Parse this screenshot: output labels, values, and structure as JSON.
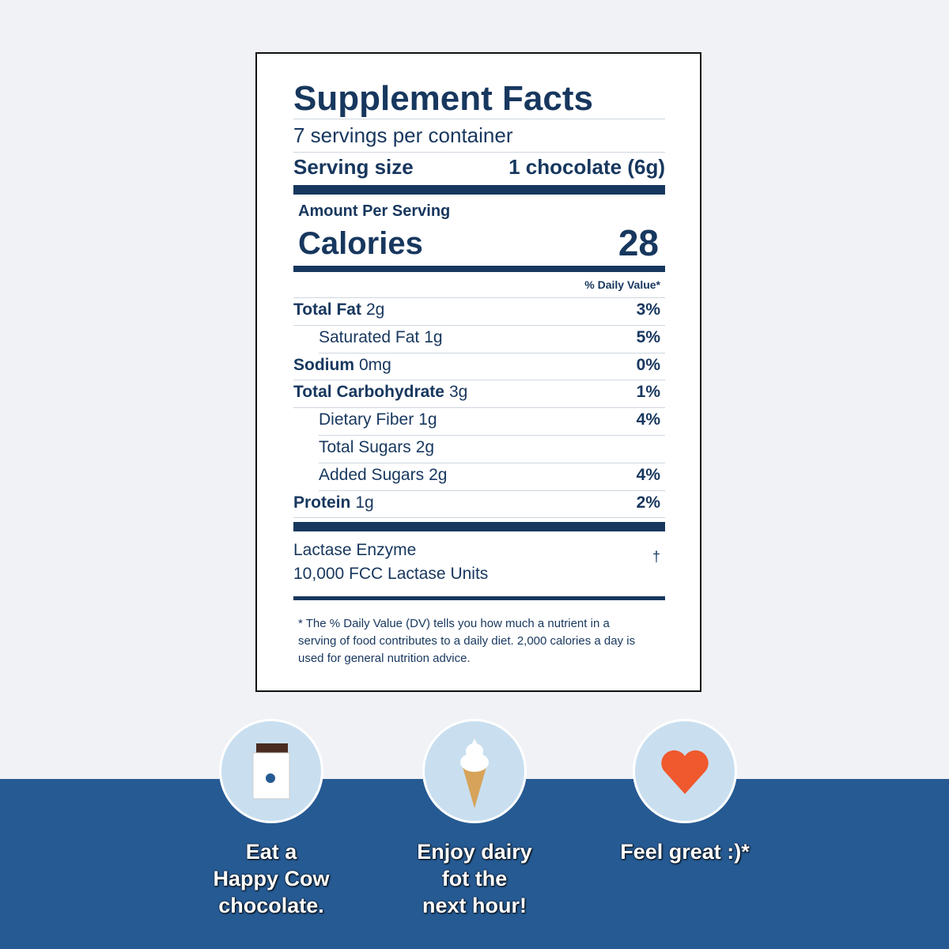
{
  "label": {
    "title": "Supplement Facts",
    "servings": "7 servings per container",
    "serving_size": {
      "label": "Serving size",
      "value": "1 chocolate (6g)"
    },
    "amount_per_serving": "Amount Per Serving",
    "calories": {
      "label": "Calories",
      "value": "28"
    },
    "dv_header": "% Daily Value*",
    "rows": [
      {
        "name": "Total Fat",
        "amount": "2g",
        "dv": "3%",
        "subrows": [
          {
            "name": "Saturated Fat",
            "amount": "1g",
            "dv": "5%"
          }
        ]
      },
      {
        "name": "Sodium",
        "amount": "0mg",
        "dv": "0%"
      },
      {
        "name": "Total Carbohydrate",
        "amount": "3g",
        "dv": "1%",
        "subrows": [
          {
            "name": "Dietary Fiber",
            "amount": "1g",
            "dv": "4%"
          },
          {
            "name": "Total Sugars",
            "amount": "2g"
          },
          {
            "name": "Added Sugars",
            "amount": "2g",
            "dv": "4%"
          }
        ]
      },
      {
        "name": "Protein",
        "amount": "1g",
        "dv": "2%"
      }
    ],
    "ingredient": {
      "name": "Lactase Enzyme",
      "amount": "10,000 FCC Lactase Units",
      "dv": "†"
    },
    "footnote": "* The % Daily Value (DV) tells you how much a nutrient in a serving of food contributes to a daily diet. 2,000 calories a day is used for general nutrition advice."
  },
  "steps": [
    {
      "caption": [
        "Eat a",
        "Happy Cow",
        "chocolate."
      ]
    },
    {
      "caption": [
        "Enjoy dairy",
        "fot the",
        "next hour!"
      ]
    },
    {
      "caption": [
        "Feel great :)*"
      ]
    }
  ]
}
